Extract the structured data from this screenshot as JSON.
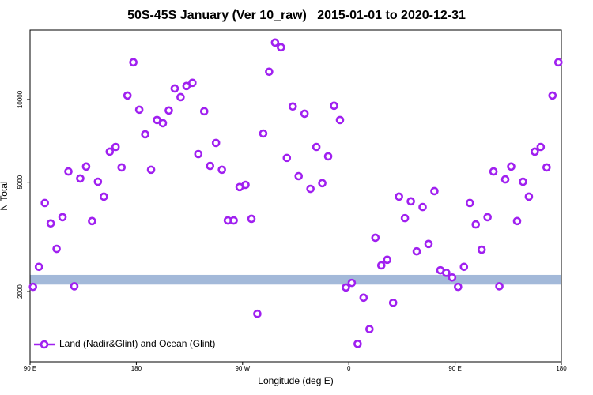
{
  "chart_data": {
    "type": "scatter",
    "title": "50S-45S January (Ver 10_raw)   2015-01-01 to 2020-12-31",
    "x_label": "Longitude (deg E)",
    "y_label": "N Total",
    "log_y": true,
    "legend_position": "lower left",
    "xlim": [
      90,
      540
    ],
    "xticks": [
      {
        "value": 90,
        "label": "90 E"
      },
      {
        "value": 180,
        "label": "180"
      },
      {
        "value": 270,
        "label": "90 W"
      },
      {
        "value": 360,
        "label": "0"
      },
      {
        "value": 450,
        "label": "90 E"
      },
      {
        "value": 540,
        "label": "180"
      }
    ],
    "ylim": [
      1110,
      17900
    ],
    "yticks": [
      2000,
      5000,
      10000
    ],
    "band": {
      "ylim": [
        2120,
        2300
      ],
      "color": "#a3b9d9"
    },
    "series": [
      {
        "name": "Land (Nadir&Glint) and Ocean (Glint)",
        "color": "#a020f0",
        "x": [
          92.5,
          97.5,
          102.5,
          107.5,
          112.5,
          117.5,
          122.5,
          127.5,
          132.5,
          137.5,
          142.5,
          147.5,
          152.5,
          157.5,
          162.5,
          167.5,
          172.5,
          177.5,
          182.5,
          187.5,
          192.5,
          197.5,
          202.5,
          207.5,
          212.5,
          217.5,
          222.5,
          227.5,
          232.5,
          237.5,
          242.5,
          247.5,
          252.5,
          257.5,
          262.5,
          267.5,
          272.5,
          277.5,
          282.5,
          287.5,
          292.5,
          297.5,
          302.5,
          307.5,
          312.5,
          317.5,
          322.5,
          327.5,
          332.5,
          337.5,
          342.5,
          347.5,
          352.5,
          357.5,
          362.5,
          367.5,
          372.5,
          377.5,
          382.5,
          387.5,
          392.5,
          397.5,
          402.5,
          407.5,
          412.5,
          417.5,
          422.5,
          427.5,
          432.5,
          437.5,
          442.5,
          447.5,
          452.5,
          457.5,
          462.5,
          467.5,
          472.5,
          477.5,
          482.5,
          487.5,
          492.5,
          497.5,
          502.5,
          507.5,
          512.5,
          517.5,
          522.5,
          527.5,
          532.5,
          537.5
        ],
        "values": [
          2080,
          2460,
          4200,
          3540,
          2860,
          3730,
          5470,
          2090,
          5160,
          5700,
          3610,
          5020,
          4430,
          6460,
          6720,
          5660,
          10340,
          13660,
          9180,
          7470,
          5550,
          8420,
          8200,
          9120,
          10970,
          10200,
          11200,
          11500,
          6330,
          9060,
          5730,
          6950,
          5550,
          3630,
          3630,
          4800,
          4890,
          3680,
          1660,
          7520,
          12620,
          16120,
          15490,
          6130,
          9430,
          5260,
          8880,
          4730,
          6720,
          4960,
          6210,
          9490,
          8420,
          2070,
          2150,
          1290,
          1900,
          1460,
          3140,
          2490,
          2610,
          1820,
          4430,
          3700,
          4260,
          2800,
          4060,
          2980,
          4640,
          2390,
          2340,
          2250,
          2080,
          2460,
          4200,
          3510,
          2840,
          3730,
          5470,
          2090,
          5120,
          5700,
          3610,
          5020,
          4430,
          6460,
          6720,
          5660,
          10340,
          13660
        ]
      }
    ]
  }
}
